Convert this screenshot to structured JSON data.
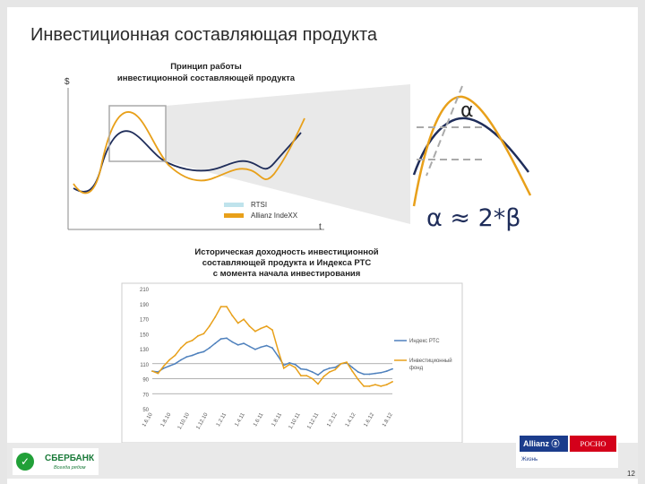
{
  "slide": {
    "title": "Инвестиционная составляющая продукта",
    "page_number": "12"
  },
  "diagram": {
    "title_line1": "Принцип работы",
    "title_line2": "инвестиционной составляющей продукта",
    "y_axis_label": "$",
    "x_axis_label": "t",
    "legend": [
      "RTSI",
      "Allianz  IndeXX"
    ],
    "colors": {
      "rtsi": "#1f2d5a",
      "indexx": "#e8a01a",
      "legend_rtsi": "#bfe3ec",
      "box": "#aaaaaa"
    },
    "zoom_alpha": "α",
    "formula": "α ≈ 2*β"
  },
  "chart_data": {
    "type": "line",
    "title": "Историческая доходность инвестиционной составляющей продукта и Индекса РТС с момента начала инвестирования",
    "title_lines": [
      "Историческая доходность инвестиционной",
      "составляющей продукта и Индекса РТС",
      "с момента начала инвестирования"
    ],
    "ylim": [
      50,
      210
    ],
    "y_ticks": [
      50,
      70,
      90,
      110,
      130,
      150,
      170,
      190,
      210
    ],
    "x_ticks": [
      "1.6.10",
      "1.8.10",
      "1.10.10",
      "1.12.10",
      "1.2.11",
      "1.4.11",
      "1.6.11",
      "1.8.11",
      "1.10.11",
      "1.12.11",
      "1.2.12",
      "1.4.12",
      "1.6.12",
      "1.8.12"
    ],
    "legend_placement": "right",
    "series": [
      {
        "name": "Индекс РТС",
        "color": "#4f81bd",
        "values": [
          100,
          99,
          104,
          107,
          110,
          115,
          119,
          121,
          124,
          126,
          131,
          137,
          143,
          144,
          139,
          135,
          137,
          133,
          129,
          132,
          134,
          131,
          120,
          108,
          111,
          109,
          103,
          102,
          99,
          95,
          101,
          104,
          105,
          110,
          111,
          105,
          99,
          96,
          96,
          97,
          98,
          100,
          103
        ]
      },
      {
        "name": "Инвестиционный фонд",
        "color": "#e8a01a",
        "values": [
          100,
          97,
          107,
          115,
          121,
          131,
          138,
          141,
          147,
          150,
          160,
          172,
          186,
          186,
          174,
          164,
          169,
          160,
          153,
          157,
          160,
          155,
          128,
          104,
          109,
          105,
          94,
          94,
          90,
          83,
          93,
          99,
          102,
          110,
          112,
          100,
          89,
          80,
          80,
          82,
          80,
          82,
          86
        ]
      }
    ]
  }
}
